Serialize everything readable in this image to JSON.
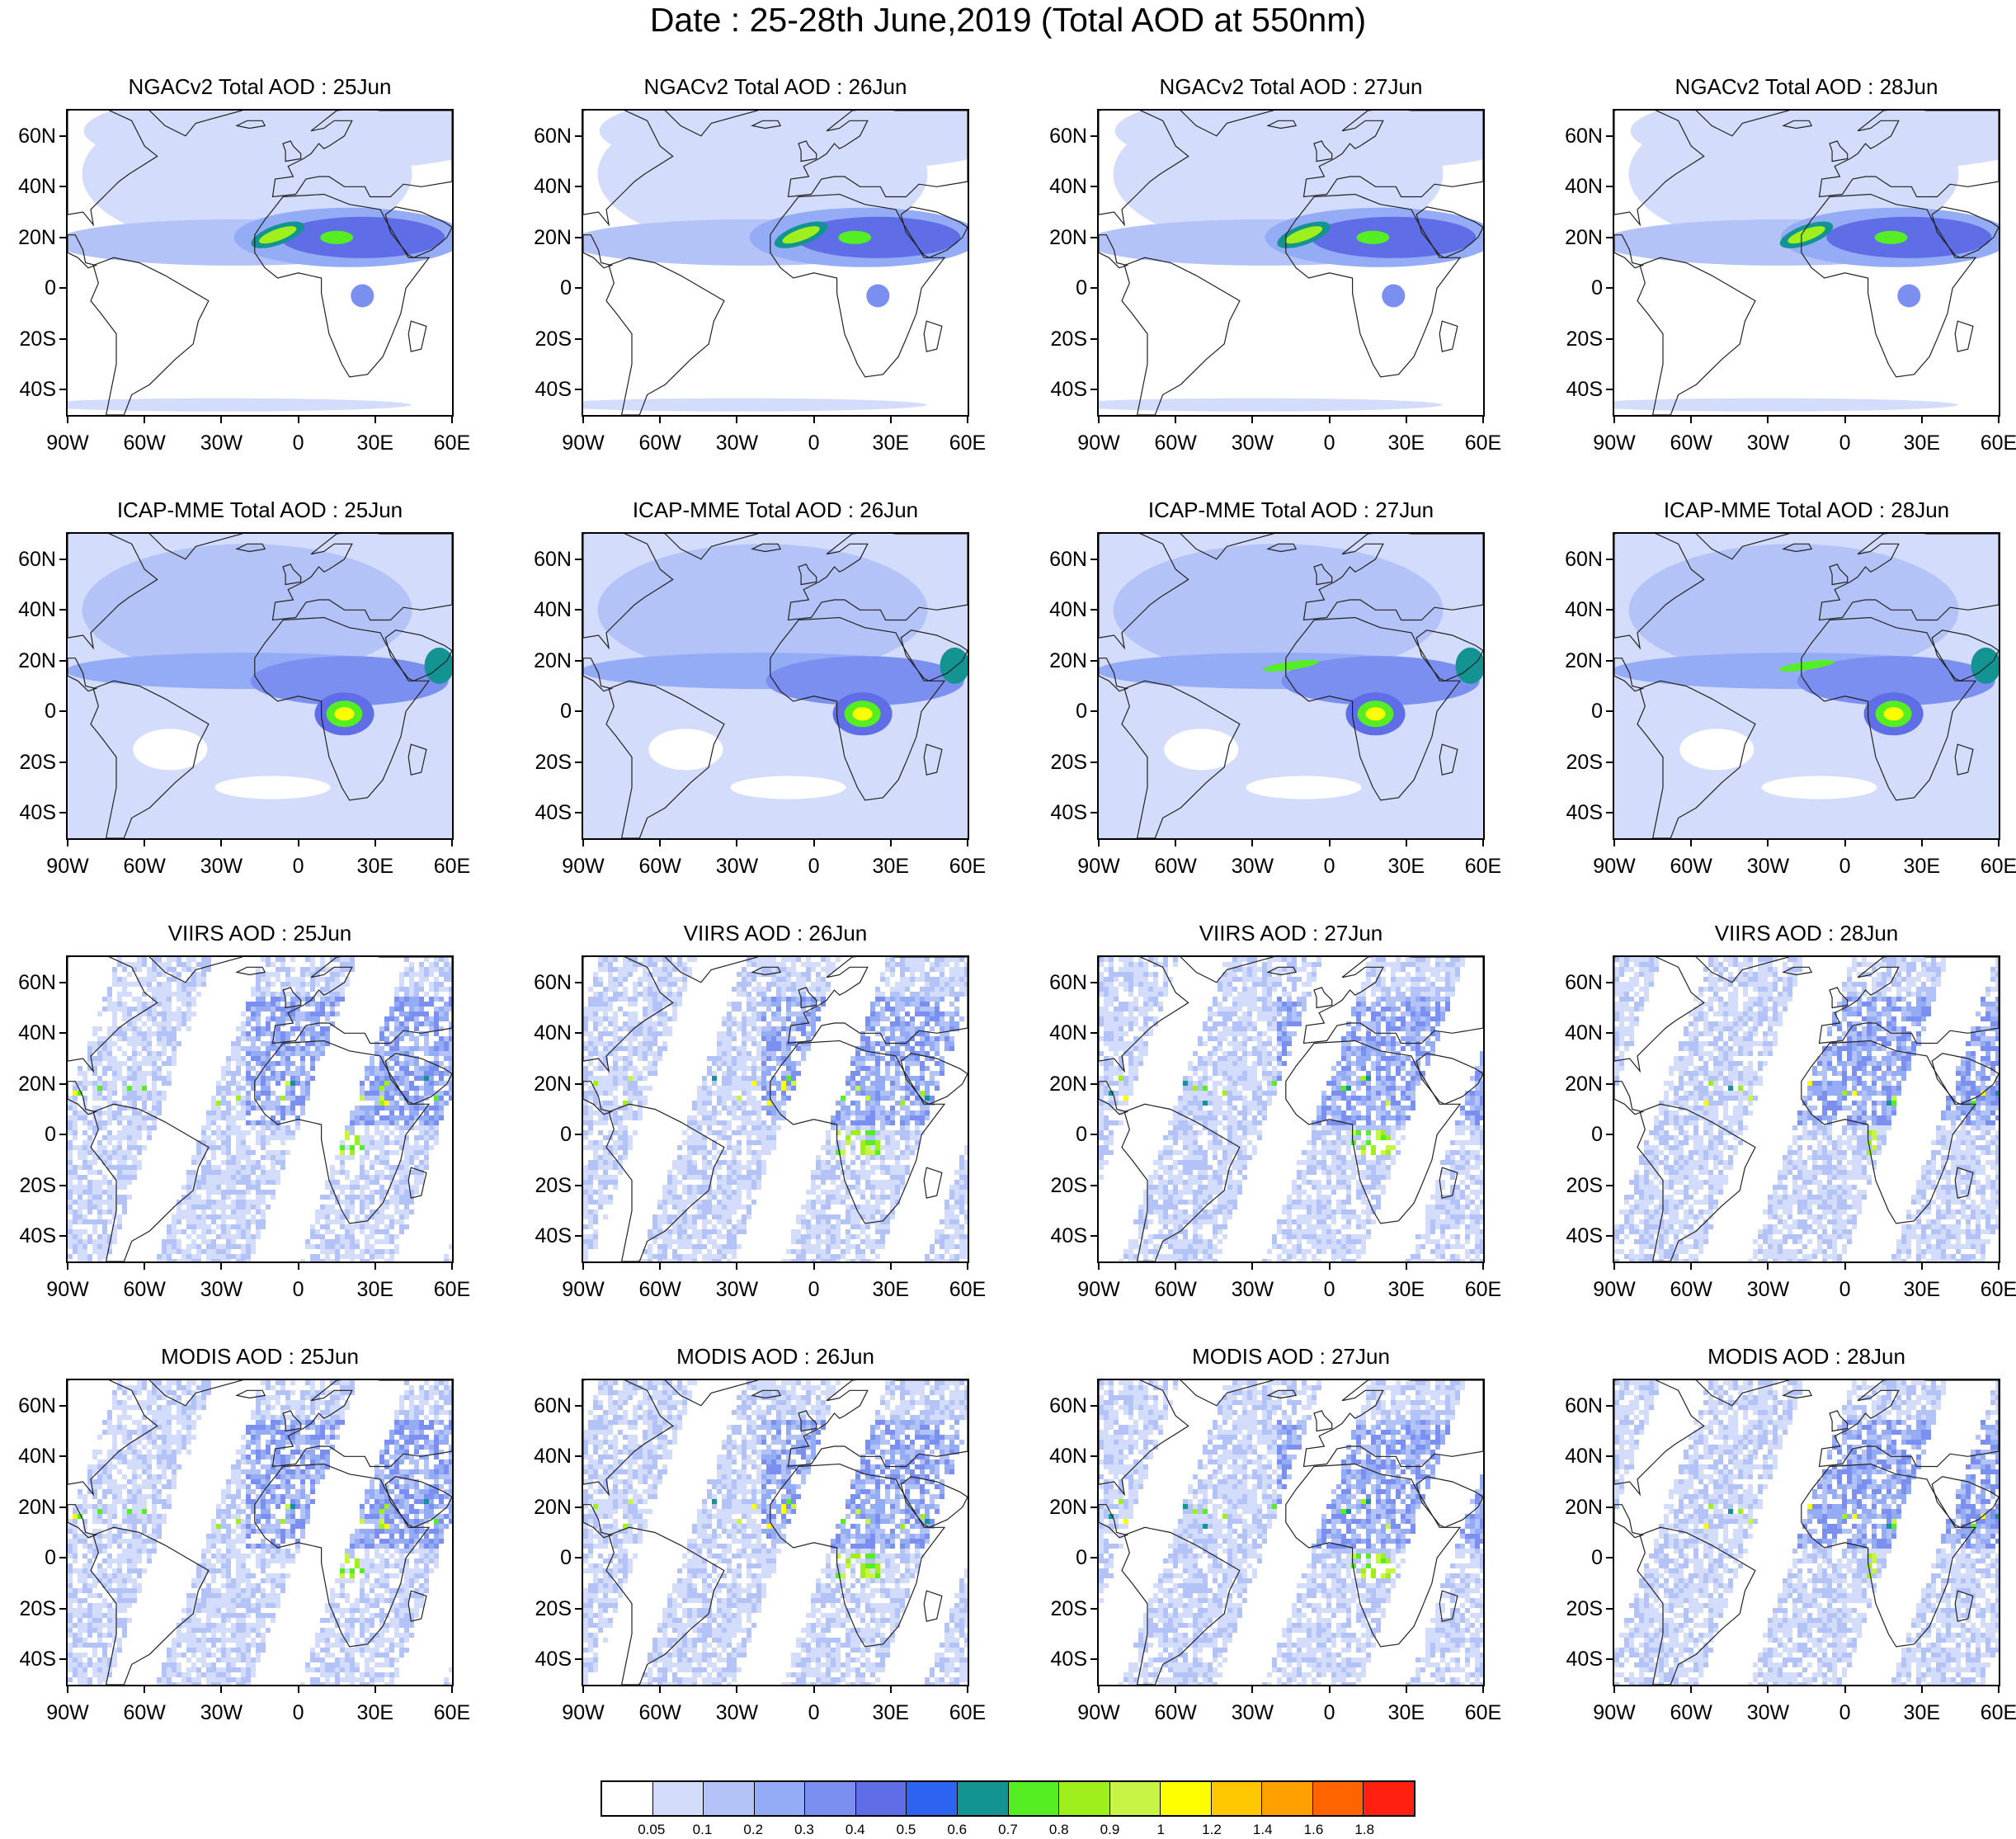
{
  "title": "Date : 25-28th June,2019 (Total AOD at 550nm)",
  "map_axes": {
    "lat_ticks": [
      "60N",
      "40N",
      "20N",
      "0",
      "20S",
      "40S"
    ],
    "lat_values": [
      60,
      40,
      20,
      0,
      -20,
      -40
    ],
    "lon_ticks": [
      "90W",
      "60W",
      "30W",
      "0",
      "30E",
      "60E"
    ],
    "lon_values": [
      -90,
      -60,
      -30,
      0,
      30,
      60
    ],
    "lat_range": [
      -50,
      70
    ],
    "lon_range": [
      -90,
      60
    ]
  },
  "rows": [
    {
      "product": "NGACv2",
      "style": "model_dust",
      "panels": [
        {
          "title": "NGACv2 Total AOD : 25Jun"
        },
        {
          "title": "NGACv2 Total AOD : 26Jun"
        },
        {
          "title": "NGACv2 Total AOD : 27Jun"
        },
        {
          "title": "NGACv2 Total AOD : 28Jun"
        }
      ]
    },
    {
      "product": "ICAP-MME",
      "style": "model_smoke",
      "panels": [
        {
          "title": "ICAP-MME Total AOD : 25Jun"
        },
        {
          "title": "ICAP-MME Total AOD : 26Jun"
        },
        {
          "title": "ICAP-MME Total AOD : 27Jun"
        },
        {
          "title": "ICAP-MME Total AOD : 28Jun"
        }
      ]
    },
    {
      "product": "VIIRS",
      "style": "satellite_swath",
      "panels": [
        {
          "title": "VIIRS AOD : 25Jun"
        },
        {
          "title": "VIIRS AOD : 26Jun"
        },
        {
          "title": "VIIRS AOD : 27Jun"
        },
        {
          "title": "VIIRS AOD : 28Jun"
        }
      ]
    },
    {
      "product": "MODIS",
      "style": "satellite_swath",
      "panels": [
        {
          "title": "MODIS AOD : 25Jun"
        },
        {
          "title": "MODIS AOD : 26Jun"
        },
        {
          "title": "MODIS AOD : 27Jun"
        },
        {
          "title": "MODIS AOD : 28Jun"
        }
      ]
    }
  ],
  "colorbar": {
    "labels": [
      "0.05",
      "0.1",
      "0.2",
      "0.3",
      "0.4",
      "0.5",
      "0.6",
      "0.7",
      "0.8",
      "0.9",
      "1",
      "1.2",
      "1.4",
      "1.6",
      "1.8"
    ],
    "colors": [
      "#ffffff",
      "#d3dcfb",
      "#b4c3f7",
      "#94abf5",
      "#7b8ff0",
      "#5f6de7",
      "#2d63f1",
      "#149393",
      "#55ee22",
      "#9eef1c",
      "#c8f545",
      "#ffff00",
      "#ffc800",
      "#ffa000",
      "#ff6400",
      "#ff2010"
    ]
  }
}
